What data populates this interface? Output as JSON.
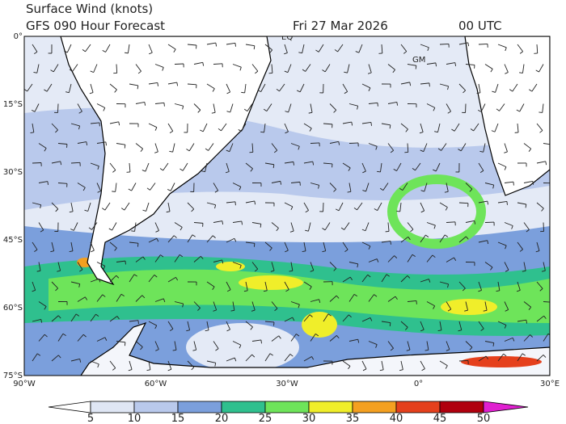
{
  "header": {
    "title": "Surface Wind (knots)",
    "subtitle": "GFS 090 Hour Forecast",
    "date": "Fri 27 Mar 2026",
    "time": "00 UTC"
  },
  "map": {
    "lat_labels": [
      "0°",
      "15°S",
      "30°S",
      "45°S",
      "60°S",
      "75°S"
    ],
    "lon_labels": [
      "90°W",
      "60°W",
      "30°W",
      "0°",
      "30°E"
    ],
    "markers": [
      "EQ",
      "GM"
    ]
  },
  "colorbar": {
    "ticks": [
      5,
      10,
      15,
      20,
      25,
      30,
      35,
      40,
      45,
      50
    ],
    "colors": [
      "#ffffff",
      "#dfe6f4",
      "#b9c9ec",
      "#7b9fdc",
      "#2fc08e",
      "#6ee45a",
      "#f0ee2a",
      "#f4a020",
      "#e5401c",
      "#b0000e",
      "#e020d0"
    ]
  }
}
